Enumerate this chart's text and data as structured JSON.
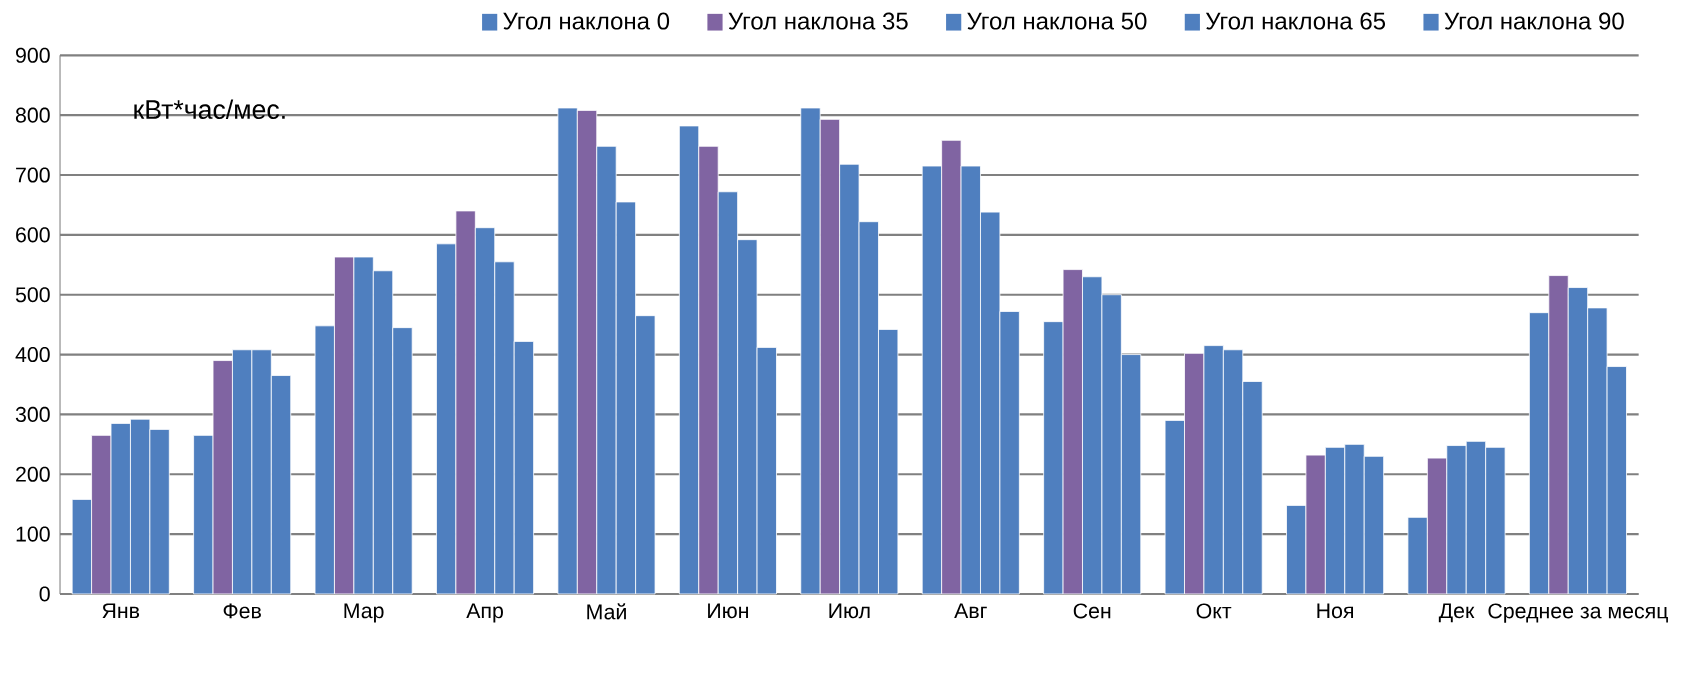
{
  "chart_data": {
    "type": "bar",
    "annotations": [
      "кВт*час/мес."
    ],
    "categories": [
      "Янв",
      "Фев",
      "Мар",
      "Апр",
      "Май",
      "Июн",
      "Июл",
      "Авг",
      "Сен",
      "Окт",
      "Ноя",
      "Дек",
      "Среднее за месяц"
    ],
    "series": [
      {
        "name": "Угол наклона 0",
        "color": "#4f7fbf",
        "values": [
          158,
          265,
          448,
          585,
          812,
          782,
          812,
          715,
          455,
          290,
          148,
          128,
          470
        ]
      },
      {
        "name": "Угол наклона 35",
        "color": "#8064a2",
        "values": [
          265,
          390,
          563,
          640,
          808,
          748,
          793,
          758,
          542,
          402,
          232,
          227,
          532
        ]
      },
      {
        "name": "Угол наклона 50",
        "color": "#4f7fbf",
        "values": [
          285,
          408,
          563,
          612,
          748,
          672,
          718,
          715,
          530,
          415,
          245,
          248,
          512
        ]
      },
      {
        "name": "Угол наклона 65",
        "color": "#4f7fbf",
        "values": [
          292,
          408,
          540,
          555,
          655,
          592,
          622,
          638,
          500,
          408,
          250,
          255,
          478
        ]
      },
      {
        "name": "Угол наклона 90",
        "color": "#4f7fbf",
        "values": [
          275,
          365,
          445,
          422,
          465,
          412,
          442,
          472,
          400,
          355,
          230,
          245,
          380
        ]
      }
    ],
    "ylim": [
      0,
      900
    ],
    "yticks": [
      0,
      100,
      200,
      300,
      400,
      500,
      600,
      700,
      800,
      900
    ],
    "grid": "y",
    "legend": "top right"
  }
}
